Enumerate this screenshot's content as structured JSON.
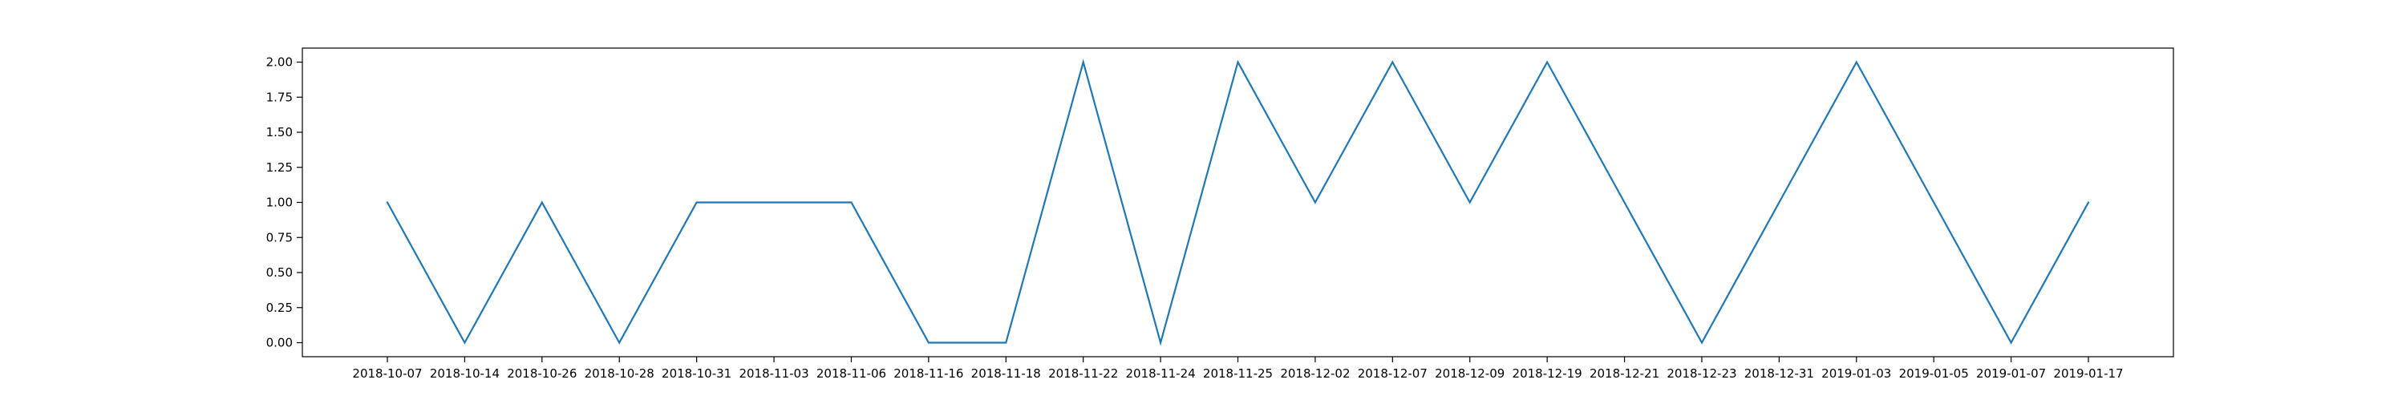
{
  "chart_data": {
    "type": "line",
    "title": "",
    "xlabel": "",
    "ylabel": "",
    "categories": [
      "2018-10-07",
      "2018-10-14",
      "2018-10-26",
      "2018-10-28",
      "2018-10-31",
      "2018-11-03",
      "2018-11-06",
      "2018-11-16",
      "2018-11-18",
      "2018-11-22",
      "2018-11-24",
      "2018-11-25",
      "2018-12-02",
      "2018-12-07",
      "2018-12-09",
      "2018-12-19",
      "2018-12-21",
      "2018-12-23",
      "2018-12-31",
      "2019-01-03",
      "2019-01-05",
      "2019-01-07",
      "2019-01-17"
    ],
    "series": [
      {
        "values": [
          1,
          0,
          1,
          0,
          1,
          1,
          1,
          0,
          0,
          2,
          0,
          2,
          1,
          2,
          1,
          2,
          1,
          0,
          1,
          2,
          1,
          0,
          1
        ],
        "color": "#1f77b4"
      }
    ],
    "ylim": [
      -0.1,
      2.1
    ],
    "yticks": [
      "0.00",
      "0.25",
      "0.50",
      "0.75",
      "1.00",
      "1.25",
      "1.50",
      "1.75",
      "2.00"
    ],
    "grid": false,
    "legend": "none"
  }
}
